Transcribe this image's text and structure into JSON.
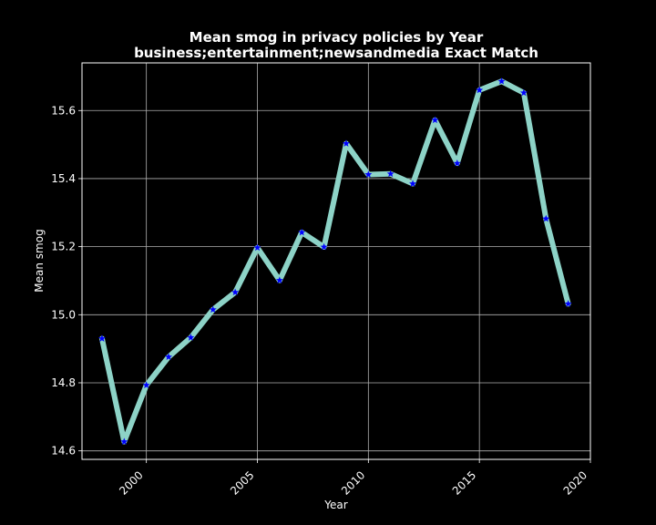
{
  "chart_data": {
    "type": "line",
    "title": "Mean smog in privacy policies by Year",
    "subtitle": "business;entertainment;newsandmedia Exact Match",
    "xlabel": "Year",
    "ylabel": "Mean smog",
    "xlim": [
      1997.1,
      2020.0
    ],
    "ylim": [
      14.575,
      15.74
    ],
    "xticks": [
      2000,
      2005,
      2010,
      2015,
      2020
    ],
    "yticks": [
      14.6,
      14.8,
      15.0,
      15.2,
      15.4,
      15.6
    ],
    "ytick_labels": [
      "14.6",
      "14.8",
      "15.0",
      "15.2",
      "15.4",
      "15.6"
    ],
    "grid": true,
    "background": "#000000",
    "line_color": "#8dd3c7",
    "marker_color": "#0000ff",
    "marker": "star",
    "x": [
      1998,
      1999,
      2000,
      2001,
      2002,
      2003,
      2004,
      2005,
      2006,
      2007,
      2008,
      2009,
      2010,
      2011,
      2012,
      2013,
      2014,
      2015,
      2016,
      2017,
      2018,
      2019
    ],
    "y": [
      14.93,
      14.627,
      14.793,
      14.876,
      14.933,
      15.015,
      15.066,
      15.197,
      15.101,
      15.242,
      15.199,
      15.503,
      15.412,
      15.414,
      15.385,
      15.572,
      15.445,
      15.66,
      15.686,
      15.652,
      15.282,
      15.032
    ]
  }
}
